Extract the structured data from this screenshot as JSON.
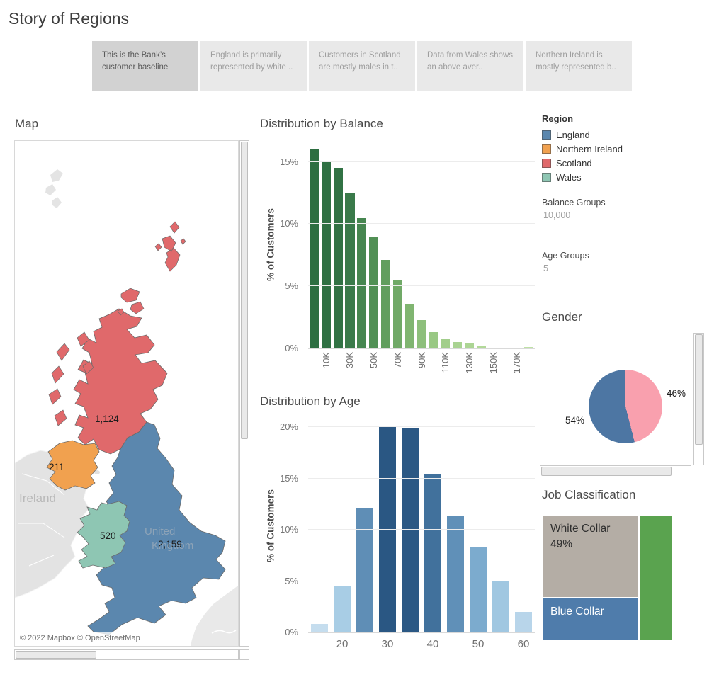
{
  "page": {
    "title": "Story of Regions"
  },
  "story_tabs": [
    {
      "label": "This is the Bank’s customer baseline",
      "active": true
    },
    {
      "label": "England is primarily represented by white ..",
      "active": false
    },
    {
      "label": "Customers in Scotland are mostly males in t..",
      "active": false
    },
    {
      "label": "Data from Wales shows an above aver..",
      "active": false
    },
    {
      "label": "Northern Ireland is mostly represented b..",
      "active": false
    }
  ],
  "map": {
    "title": "Map",
    "background_labels": {
      "ireland": "Ireland",
      "uk_line1": "United",
      "uk_line2": "Kingdom"
    },
    "attribution": "© 2022 Mapbox © OpenStreetMap"
  },
  "legend": {
    "title": "Region",
    "items": [
      {
        "label": "England",
        "color": "#5b87ae"
      },
      {
        "label": "Northern Ireland",
        "color": "#f1a14f"
      },
      {
        "label": "Scotland",
        "color": "#e0696b"
      },
      {
        "label": "Wales",
        "color": "#8ec6b3"
      }
    ]
  },
  "parameters": [
    {
      "label": "Balance Groups",
      "value": "10,000"
    },
    {
      "label": "Age Groups",
      "value": "5"
    }
  ],
  "chart_data": [
    {
      "id": "balance",
      "type": "bar",
      "title": "Distribution by Balance",
      "ylabel": "% of Customers",
      "ymax": 16.4,
      "ylim": [
        0,
        16.4
      ],
      "grid": true,
      "yticks": [
        {
          "label": "0%",
          "value": 0
        },
        {
          "label": "5%",
          "value": 5
        },
        {
          "label": "10%",
          "value": 10
        },
        {
          "label": "15%",
          "value": 15
        }
      ],
      "xticks": [
        "10K",
        "30K",
        "50K",
        "70K",
        "90K",
        "110K",
        "130K",
        "150K",
        "170K"
      ],
      "tick_positions": [
        1,
        3,
        5,
        7,
        9,
        11,
        13,
        15,
        17
      ],
      "values": [
        16.0,
        15.0,
        14.5,
        12.5,
        10.5,
        9.0,
        7.1,
        5.5,
        3.6,
        2.3,
        1.3,
        0.8,
        0.5,
        0.4,
        0.2,
        0,
        0,
        0,
        0.1
      ],
      "colors": [
        "#2d6e41",
        "#2f7043",
        "#317244",
        "#3a7a4a",
        "#468650",
        "#519055",
        "#619e5e",
        "#70a967",
        "#80b571",
        "#8dbf7b",
        "#99c884",
        "#a2ce8b",
        "#a9d392",
        "#acd594",
        "#b2d999",
        "#b2d999",
        "#b2d999",
        "#b2d999",
        "#bee1a5"
      ]
    },
    {
      "id": "age",
      "type": "bar",
      "title": "Distribution by Age",
      "ylabel": "% of Customers",
      "ymax": 20.3,
      "ylim": [
        0,
        20.3
      ],
      "grid": true,
      "yticks": [
        {
          "label": "0%",
          "value": 0
        },
        {
          "label": "5%",
          "value": 5
        },
        {
          "label": "10%",
          "value": 10
        },
        {
          "label": "15%",
          "value": 15
        },
        {
          "label": "20%",
          "value": 20
        }
      ],
      "xticks": [
        "20",
        "30",
        "40",
        "50",
        "60"
      ],
      "tick_positions": [
        1,
        3,
        5,
        7,
        9
      ],
      "values": [
        0.8,
        4.5,
        12.1,
        20.0,
        19.9,
        15.4,
        11.3,
        8.3,
        5.0,
        2.0
      ],
      "colors": [
        "#c5ddee",
        "#a8cde5",
        "#5f8eb6",
        "#2a5783",
        "#2b5884",
        "#41719c",
        "#6090b8",
        "#7cabce",
        "#a0c7e1",
        "#b8d5ea"
      ]
    },
    {
      "id": "gender",
      "type": "pie",
      "title": "Gender",
      "slices": [
        {
          "label": "54%",
          "value": 54,
          "color": "#4d76a3"
        },
        {
          "label": "46%",
          "value": 46,
          "color": "#f9a0ae"
        }
      ]
    },
    {
      "id": "job",
      "type": "treemap",
      "title": "Job Classification",
      "items": [
        {
          "label": "White Collar",
          "sublabel": "49%",
          "color": "#b4ada5",
          "text_color": "#2f2f2f"
        },
        {
          "label": "Blue Collar",
          "sublabel": "",
          "color": "#4f7cab",
          "text_color": "#ffffff"
        },
        {
          "label": "",
          "sublabel": "",
          "color": "#5aa34f",
          "text_color": "#ffffff"
        }
      ]
    },
    {
      "id": "map-values",
      "type": "map",
      "title": "Map",
      "regions": [
        {
          "name": "England",
          "value": "2,159",
          "color": "#5b87ae"
        },
        {
          "name": "Northern Ireland",
          "value": "211",
          "color": "#f1a14f"
        },
        {
          "name": "Scotland",
          "value": "1,124",
          "color": "#e0696b"
        },
        {
          "name": "Wales",
          "value": "520",
          "color": "#8ec6b3"
        }
      ]
    }
  ]
}
